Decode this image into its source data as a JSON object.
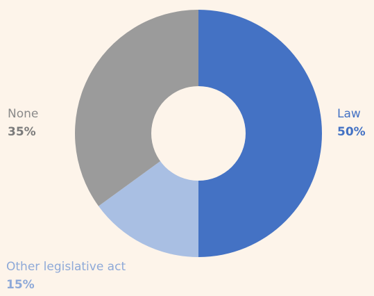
{
  "chart_data": {
    "type": "pie",
    "donut": true,
    "categories": [
      "Law",
      "Other legislative act",
      "None"
    ],
    "values": [
      50,
      15,
      35
    ],
    "value_labels": [
      "50%",
      "15%",
      "35%"
    ],
    "colors": [
      "#4472c4",
      "#a9bfe3",
      "#9b9b9b"
    ],
    "label_colors": [
      "#4472c4",
      "#8ea9d8",
      "#8a8a8a"
    ],
    "pct_colors": [
      "#4472c4",
      "#8ea9d8",
      "#7b7b7b"
    ],
    "start": "top",
    "direction": "clockwise"
  }
}
